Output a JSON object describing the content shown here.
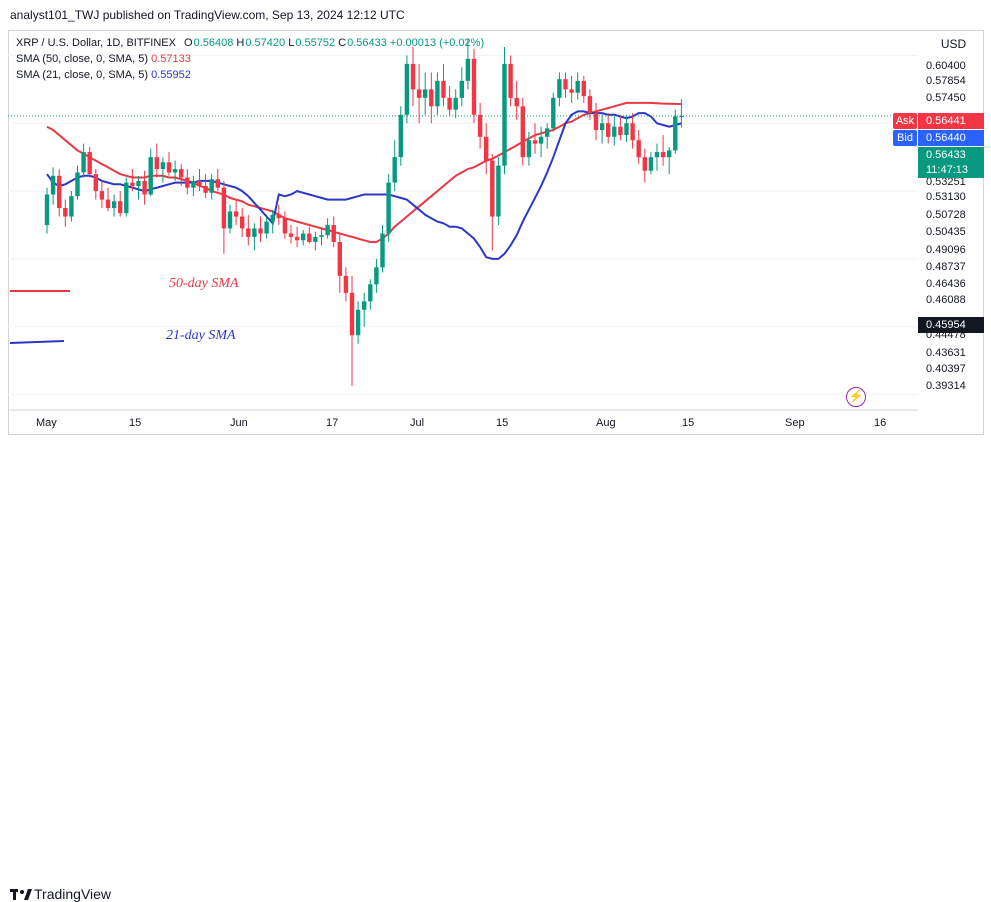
{
  "publisher": "analyst101_TWJ published on TradingView.com, Sep 13, 2024 12:12 UTC",
  "legend": {
    "symbol": "XRP / U.S. Dollar, 1D, BITFINEX",
    "o_label": "O",
    "o": "0.56408",
    "h_label": "H",
    "h": "0.57420",
    "l_label": "L",
    "l": "0.55752",
    "c_label": "C",
    "c": "0.56433",
    "change": "+0.00013 (+0.02%)",
    "sma50_label": "SMA (50, close, 0, SMA, 5)",
    "sma50_value": "0.57133",
    "sma21_label": "SMA (21, close, 0, SMA, 5)",
    "sma21_value": "0.55952"
  },
  "annotations": {
    "sma50": "50-day SMA",
    "sma21": "21-day SMA"
  },
  "axis": {
    "currency": "USD",
    "price_labels": [
      "0.60400",
      "0.57854",
      "0.57450",
      "0.53251",
      "0.53130",
      "0.50728",
      "0.50435",
      "0.49096",
      "0.48737",
      "0.46436",
      "0.46088",
      "0.44478",
      "0.43631",
      "0.40397",
      "0.39314"
    ],
    "x_labels": [
      "May",
      "15",
      "Jun",
      "17",
      "Jul",
      "15",
      "Aug",
      "15",
      "Sep",
      "16"
    ]
  },
  "tags": {
    "ask_label": "Ask",
    "ask": "0.56441",
    "bid_label": "Bid",
    "bid": "0.56440",
    "last": "0.56433",
    "countdown": "11:47:13",
    "lowmark": "0.45954"
  },
  "colors": {
    "up": "#089981",
    "down": "#f23645",
    "sma50": "#e53a46",
    "sma21": "#2a38c5"
  },
  "brand": "TradingView",
  "chart_data": {
    "type": "candlestick",
    "title": "XRP / U.S. Dollar, 1D, BITFINEX",
    "ylim": [
      0.385,
      0.615
    ],
    "start": "2024-04-29",
    "candles": [
      [
        0.5,
        0.522,
        0.495,
        0.518
      ],
      [
        0.518,
        0.534,
        0.512,
        0.529
      ],
      [
        0.529,
        0.533,
        0.505,
        0.51
      ],
      [
        0.51,
        0.515,
        0.499,
        0.505
      ],
      [
        0.505,
        0.52,
        0.502,
        0.517
      ],
      [
        0.517,
        0.535,
        0.515,
        0.531
      ],
      [
        0.531,
        0.548,
        0.528,
        0.543
      ],
      [
        0.543,
        0.546,
        0.528,
        0.53
      ],
      [
        0.53,
        0.533,
        0.515,
        0.52
      ],
      [
        0.52,
        0.526,
        0.51,
        0.515
      ],
      [
        0.515,
        0.522,
        0.508,
        0.51
      ],
      [
        0.51,
        0.518,
        0.505,
        0.514
      ],
      [
        0.514,
        0.52,
        0.505,
        0.507
      ],
      [
        0.507,
        0.528,
        0.505,
        0.525
      ],
      [
        0.525,
        0.533,
        0.52,
        0.523
      ],
      [
        0.523,
        0.529,
        0.515,
        0.526
      ],
      [
        0.526,
        0.532,
        0.512,
        0.518
      ],
      [
        0.518,
        0.545,
        0.517,
        0.54
      ],
      [
        0.54,
        0.548,
        0.528,
        0.533
      ],
      [
        0.533,
        0.54,
        0.525,
        0.537
      ],
      [
        0.537,
        0.543,
        0.529,
        0.531
      ],
      [
        0.531,
        0.538,
        0.526,
        0.533
      ],
      [
        0.533,
        0.536,
        0.523,
        0.528
      ],
      [
        0.528,
        0.533,
        0.518,
        0.522
      ],
      [
        0.522,
        0.529,
        0.517,
        0.526
      ],
      [
        0.526,
        0.533,
        0.52,
        0.523
      ],
      [
        0.523,
        0.53,
        0.516,
        0.519
      ],
      [
        0.519,
        0.53,
        0.515,
        0.527
      ],
      [
        0.527,
        0.533,
        0.52,
        0.522
      ],
      [
        0.522,
        0.526,
        0.483,
        0.498
      ],
      [
        0.498,
        0.512,
        0.495,
        0.508
      ],
      [
        0.508,
        0.515,
        0.5,
        0.505
      ],
      [
        0.505,
        0.51,
        0.493,
        0.498
      ],
      [
        0.498,
        0.506,
        0.488,
        0.493
      ],
      [
        0.493,
        0.501,
        0.485,
        0.498
      ],
      [
        0.498,
        0.505,
        0.49,
        0.495
      ],
      [
        0.495,
        0.505,
        0.492,
        0.502
      ],
      [
        0.502,
        0.509,
        0.495,
        0.506
      ],
      [
        0.506,
        0.512,
        0.5,
        0.504
      ],
      [
        0.504,
        0.508,
        0.492,
        0.495
      ],
      [
        0.495,
        0.5,
        0.489,
        0.493
      ],
      [
        0.493,
        0.499,
        0.487,
        0.491
      ],
      [
        0.491,
        0.497,
        0.488,
        0.495
      ],
      [
        0.495,
        0.499,
        0.489,
        0.49
      ],
      [
        0.49,
        0.496,
        0.485,
        0.493
      ],
      [
        0.493,
        0.498,
        0.488,
        0.494
      ],
      [
        0.494,
        0.504,
        0.492,
        0.5
      ],
      [
        0.5,
        0.505,
        0.487,
        0.49
      ],
      [
        0.49,
        0.495,
        0.46,
        0.47
      ],
      [
        0.47,
        0.475,
        0.455,
        0.46
      ],
      [
        0.46,
        0.47,
        0.405,
        0.435
      ],
      [
        0.435,
        0.455,
        0.43,
        0.45
      ],
      [
        0.45,
        0.46,
        0.44,
        0.455
      ],
      [
        0.455,
        0.468,
        0.45,
        0.465
      ],
      [
        0.465,
        0.48,
        0.46,
        0.475
      ],
      [
        0.475,
        0.5,
        0.472,
        0.495
      ],
      [
        0.495,
        0.53,
        0.49,
        0.525
      ],
      [
        0.525,
        0.55,
        0.52,
        0.54
      ],
      [
        0.54,
        0.57,
        0.535,
        0.565
      ],
      [
        0.565,
        0.6,
        0.56,
        0.595
      ],
      [
        0.595,
        0.605,
        0.57,
        0.58
      ],
      [
        0.58,
        0.595,
        0.56,
        0.575
      ],
      [
        0.575,
        0.59,
        0.565,
        0.58
      ],
      [
        0.58,
        0.59,
        0.56,
        0.57
      ],
      [
        0.57,
        0.59,
        0.565,
        0.585
      ],
      [
        0.585,
        0.595,
        0.57,
        0.575
      ],
      [
        0.575,
        0.582,
        0.564,
        0.568
      ],
      [
        0.568,
        0.58,
        0.563,
        0.575
      ],
      [
        0.575,
        0.593,
        0.57,
        0.585
      ],
      [
        0.585,
        0.61,
        0.58,
        0.598
      ],
      [
        0.598,
        0.604,
        0.56,
        0.565
      ],
      [
        0.565,
        0.572,
        0.545,
        0.552
      ],
      [
        0.552,
        0.56,
        0.53,
        0.538
      ],
      [
        0.538,
        0.542,
        0.485,
        0.505
      ],
      [
        0.505,
        0.54,
        0.5,
        0.535
      ],
      [
        0.535,
        0.605,
        0.53,
        0.595
      ],
      [
        0.595,
        0.6,
        0.57,
        0.575
      ],
      [
        0.575,
        0.585,
        0.562,
        0.57
      ],
      [
        0.57,
        0.575,
        0.535,
        0.54
      ],
      [
        0.54,
        0.555,
        0.535,
        0.55
      ],
      [
        0.55,
        0.56,
        0.542,
        0.548
      ],
      [
        0.548,
        0.558,
        0.54,
        0.552
      ],
      [
        0.552,
        0.56,
        0.545,
        0.557
      ],
      [
        0.557,
        0.578,
        0.555,
        0.575
      ],
      [
        0.575,
        0.59,
        0.57,
        0.586
      ],
      [
        0.586,
        0.59,
        0.575,
        0.58
      ],
      [
        0.58,
        0.588,
        0.572,
        0.578
      ],
      [
        0.578,
        0.59,
        0.574,
        0.585
      ],
      [
        0.585,
        0.588,
        0.572,
        0.576
      ],
      [
        0.576,
        0.58,
        0.562,
        0.566
      ],
      [
        0.566,
        0.572,
        0.55,
        0.556
      ],
      [
        0.556,
        0.565,
        0.548,
        0.56
      ],
      [
        0.56,
        0.566,
        0.548,
        0.552
      ],
      [
        0.552,
        0.564,
        0.547,
        0.558
      ],
      [
        0.558,
        0.565,
        0.55,
        0.553
      ],
      [
        0.553,
        0.565,
        0.549,
        0.56
      ],
      [
        0.56,
        0.566,
        0.545,
        0.55
      ],
      [
        0.55,
        0.556,
        0.536,
        0.54
      ],
      [
        0.54,
        0.545,
        0.525,
        0.532
      ],
      [
        0.532,
        0.543,
        0.53,
        0.54
      ],
      [
        0.54,
        0.548,
        0.532,
        0.543
      ],
      [
        0.543,
        0.553,
        0.535,
        0.54
      ],
      [
        0.54,
        0.546,
        0.53,
        0.544
      ],
      [
        0.544,
        0.568,
        0.542,
        0.564
      ],
      [
        0.564,
        0.5742,
        0.5575,
        0.5643
      ]
    ],
    "sma21": [
      0.518,
      0.517,
      0.518,
      0.52,
      0.519,
      0.518,
      0.517,
      0.516,
      0.515,
      0.515,
      0.515,
      0.515,
      0.516,
      0.517,
      0.518,
      0.518,
      0.518,
      0.518,
      0.518,
      0.517,
      0.516,
      0.515,
      0.512,
      0.509,
      0.506,
      0.504,
      0.502,
      0.501,
      0.499,
      0.499,
      0.498,
      0.495,
      0.492,
      0.487,
      0.481,
      0.48,
      0.48,
      0.483,
      0.488,
      0.494,
      0.502,
      0.509,
      0.516,
      0.523,
      0.531,
      0.54,
      0.55,
      0.56,
      0.565,
      0.567,
      0.567,
      0.566,
      0.566,
      0.566,
      0.565,
      0.565,
      0.564,
      0.563,
      0.564,
      0.566,
      0.566,
      0.564,
      0.56,
      0.559,
      0.558,
      0.559,
      0.56
    ],
    "sma21_start_index": 38,
    "sma21_head": [
      0.53,
      0.525,
      0.523,
      0.524,
      0.526,
      0.528,
      0.529,
      0.529,
      0.528,
      0.526,
      0.525,
      0.524,
      0.524,
      0.523,
      0.522,
      0.521,
      0.52,
      0.521,
      0.522,
      0.523,
      0.524,
      0.525,
      0.525,
      0.525,
      0.525,
      0.526,
      0.526,
      0.526,
      0.525,
      0.524,
      0.523,
      0.522,
      0.52,
      0.517,
      0.513,
      0.509,
      0.505,
      0.501
    ],
    "sma50": [
      0.558,
      0.556,
      0.553,
      0.55,
      0.547,
      0.544,
      0.542,
      0.54,
      0.538,
      0.536,
      0.534,
      0.532,
      0.53,
      0.529,
      0.528,
      0.528,
      0.528,
      0.529,
      0.529,
      0.529,
      0.528,
      0.528,
      0.527,
      0.526,
      0.525,
      0.523,
      0.522,
      0.52,
      0.519,
      0.518,
      0.516,
      0.515,
      0.514,
      0.512,
      0.511,
      0.51,
      0.509,
      0.508,
      0.506,
      0.504,
      0.503,
      0.502,
      0.501,
      0.5,
      0.499,
      0.498,
      0.497,
      0.496,
      0.495,
      0.494,
      0.493,
      0.492,
      0.491,
      0.49,
      0.49,
      0.492,
      0.495,
      0.499,
      0.502,
      0.505,
      0.508,
      0.511,
      0.514,
      0.517,
      0.52,
      0.523,
      0.526,
      0.529,
      0.531,
      0.533,
      0.534,
      0.536,
      0.538,
      0.539,
      0.541,
      0.543,
      0.545,
      0.547,
      0.549,
      0.551,
      0.553,
      0.554,
      0.555,
      0.556,
      0.558,
      0.56,
      0.561,
      0.563,
      0.565,
      0.566,
      0.567,
      0.568,
      0.569,
      0.57,
      0.571,
      0.572,
      0.572,
      0.572,
      0.572,
      0.572,
      0.5718,
      0.5716,
      0.5715,
      0.5714,
      0.5713
    ]
  }
}
